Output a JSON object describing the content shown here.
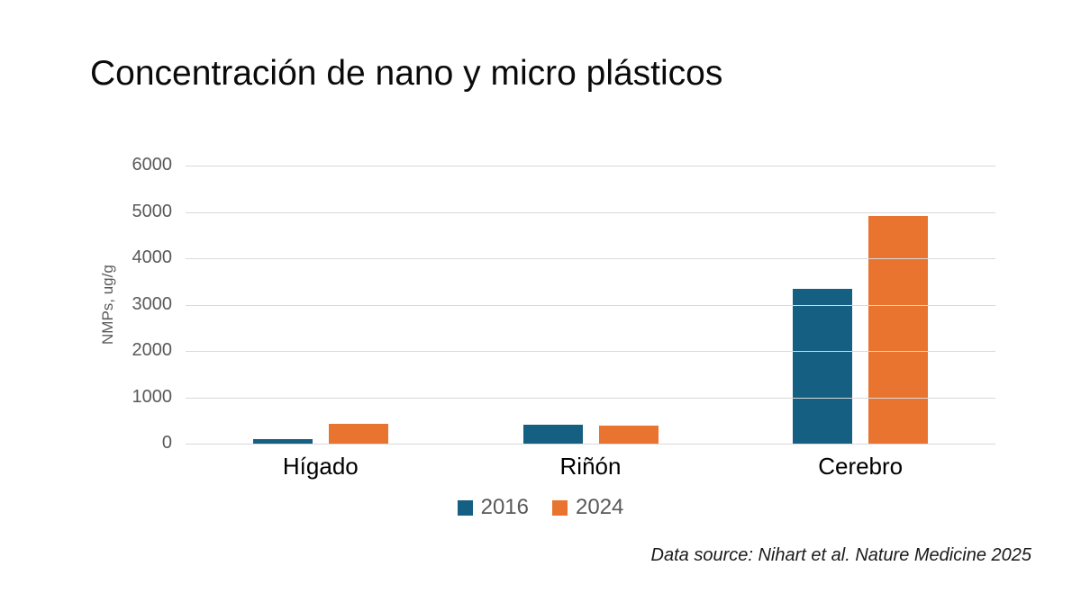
{
  "title": "Concentración de nano y micro plásticos",
  "source_note": "Data source: Nihart et al. Nature Medicine 2025",
  "colors": {
    "series_2016": "#155F82",
    "series_2024": "#E9742F",
    "grid": "#D9D9D9",
    "axis_text": "#595959",
    "category_text": "#000000"
  },
  "chart_data": {
    "type": "bar",
    "title": "Concentración de nano y micro plásticos",
    "categories": [
      "Hígado",
      "Riñón",
      "Cerebro"
    ],
    "series": [
      {
        "name": "2016",
        "color": "#155F82",
        "values": [
          100,
          400,
          3345
        ]
      },
      {
        "name": "2024",
        "color": "#E9742F",
        "values": [
          430,
          390,
          4917
        ]
      }
    ],
    "xlabel": "",
    "ylabel": "NMPs, ug/g",
    "ylim": [
      0,
      6000
    ],
    "yticks": [
      0,
      1000,
      2000,
      3000,
      4000,
      5000,
      6000
    ],
    "grid": true,
    "legend_position": "bottom",
    "source": "Data source: Nihart et al. Nature Medicine 2025"
  }
}
